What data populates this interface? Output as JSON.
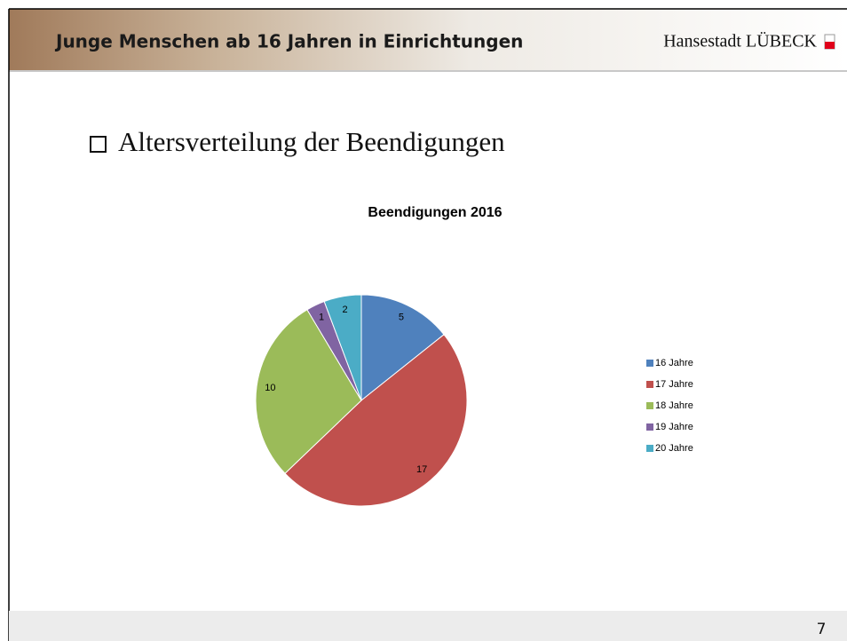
{
  "header": {
    "title": "Junge Menschen ab 16 Jahren in Einrichtungen",
    "brand": "Hansestadt LÜBECK"
  },
  "heading": "Altersverteilung der Beendigungen",
  "page_number": "7",
  "chart_data": {
    "type": "pie",
    "title": "Beendigungen 2016",
    "categories": [
      "16 Jahre",
      "17 Jahre",
      "18 Jahre",
      "19 Jahre",
      "20 Jahre"
    ],
    "values": [
      5,
      17,
      10,
      1,
      2
    ],
    "colors": [
      "#4f81bd",
      "#c0504d",
      "#9bbb59",
      "#8064a2",
      "#4bacc6"
    ],
    "legend": "right"
  }
}
